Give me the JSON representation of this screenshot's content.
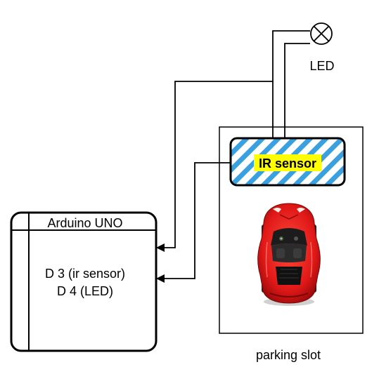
{
  "diagram": {
    "arduino": {
      "title": "Arduino UNO",
      "pin_line_1": "D 3 (ir sensor)",
      "pin_line_2": "D 4 (LED)"
    },
    "sensor": {
      "label": "IR sensor",
      "label_highlight_color": "#ffff00",
      "hatch_color": "#3aa0e0"
    },
    "led": {
      "label": "LED",
      "icon": "lamp-icon"
    },
    "parking": {
      "label": "parking slot"
    },
    "car": {
      "icon": "red-car-icon",
      "color": "#e01818"
    }
  }
}
